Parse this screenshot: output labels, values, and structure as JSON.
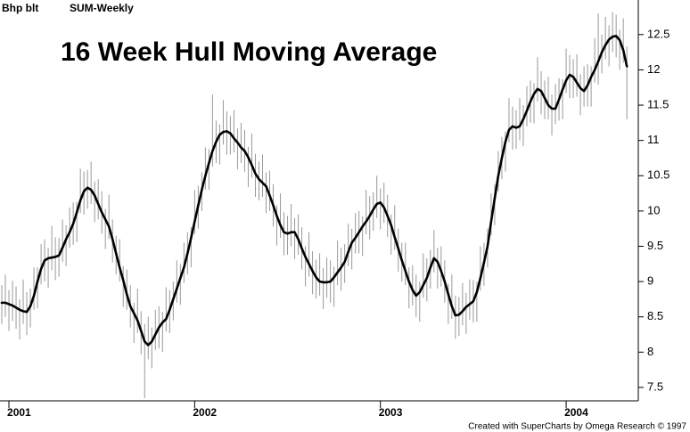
{
  "chart_data": {
    "type": "ohlc",
    "symbol": "Bhp blt",
    "interval": "SUM-Weekly",
    "title": "16 Week Hull Moving Average",
    "footer": "Created with SuperCharts by Omega Research © 1997",
    "bar_color": "#999999",
    "line_color": "#000000",
    "xlim": [
      -2.5,
      176.2
    ],
    "ylim": [
      7.31,
      12.99
    ],
    "xticks": [
      {
        "value": 0,
        "label": "2001"
      },
      {
        "value": 52,
        "label": "2002"
      },
      {
        "value": 104,
        "label": "2003"
      },
      {
        "value": 156,
        "label": "2004"
      }
    ],
    "yticks": [
      7.5,
      8,
      8.5,
      9,
      9.5,
      10,
      10.5,
      11,
      11.5,
      12,
      12.5
    ],
    "x": [
      -2,
      -1,
      0,
      1,
      2,
      3,
      4,
      5,
      6,
      7,
      8,
      9,
      10,
      11,
      12,
      13,
      14,
      15,
      16,
      17,
      18,
      19,
      20,
      21,
      22,
      23,
      24,
      25,
      26,
      27,
      28,
      29,
      30,
      31,
      32,
      33,
      34,
      35,
      36,
      37,
      38,
      39,
      40,
      41,
      42,
      43,
      44,
      45,
      46,
      47,
      48,
      49,
      50,
      51,
      52,
      53,
      54,
      55,
      56,
      57,
      58,
      59,
      60,
      61,
      62,
      63,
      64,
      65,
      66,
      67,
      68,
      69,
      70,
      71,
      72,
      73,
      74,
      75,
      76,
      77,
      78,
      79,
      80,
      81,
      82,
      83,
      84,
      85,
      86,
      87,
      88,
      89,
      90,
      91,
      92,
      93,
      94,
      95,
      96,
      97,
      98,
      99,
      100,
      101,
      102,
      103,
      104,
      105,
      106,
      107,
      108,
      109,
      110,
      111,
      112,
      113,
      114,
      115,
      116,
      117,
      118,
      119,
      120,
      121,
      122,
      123,
      124,
      125,
      126,
      127,
      128,
      129,
      130,
      131,
      132,
      133,
      134,
      135,
      136,
      137,
      138,
      139,
      140,
      141,
      142,
      143,
      144,
      145,
      146,
      147,
      148,
      149,
      150,
      151,
      152,
      153,
      154,
      155,
      156,
      157,
      158,
      159,
      160,
      161,
      162,
      163,
      164,
      165,
      166,
      167,
      168,
      169,
      170,
      171,
      172,
      173
    ],
    "high": [
      8.95,
      9.1,
      8.88,
      9.01,
      8.93,
      8.75,
      9.03,
      8.85,
      8.9,
      9.2,
      9.2,
      9.53,
      9.6,
      9.48,
      9.79,
      9.63,
      9.62,
      9.88,
      9.8,
      10.05,
      10.12,
      10.13,
      10.6,
      10.56,
      10.58,
      10.7,
      10.42,
      10.45,
      10.28,
      10.03,
      10.23,
      9.88,
      9.65,
      9.6,
      9.22,
      9.17,
      8.95,
      8.7,
      8.9,
      8.58,
      8.4,
      8.5,
      8.35,
      8.6,
      8.65,
      8.57,
      8.92,
      8.88,
      9.0,
      9.3,
      9.25,
      9.55,
      9.7,
      9.77,
      10.3,
      10.36,
      10.55,
      10.9,
      10.88,
      11.65,
      11.28,
      11.23,
      11.57,
      11.41,
      11.35,
      11.43,
      11.17,
      11.25,
      11.15,
      10.91,
      11.1,
      10.81,
      10.7,
      10.8,
      10.55,
      10.57,
      10.38,
      10.08,
      10.25,
      9.98,
      9.93,
      10.1,
      9.9,
      9.95,
      9.77,
      9.5,
      9.7,
      9.43,
      9.31,
      9.4,
      9.19,
      9.34,
      9.3,
      9.21,
      9.58,
      9.48,
      9.53,
      9.82,
      9.75,
      9.97,
      10.0,
      9.93,
      10.3,
      10.21,
      10.27,
      10.5,
      10.32,
      10.4,
      10.23,
      9.95,
      10.08,
      9.75,
      9.55,
      9.55,
      9.2,
      9.23,
      9.1,
      9.0,
      9.4,
      9.33,
      9.45,
      9.73,
      9.48,
      9.5,
      9.3,
      8.97,
      9.1,
      8.8,
      8.78,
      8.98,
      8.84,
      9.03,
      9.02,
      9.0,
      9.5,
      9.55,
      9.75,
      10.25,
      10.38,
      10.85,
      11.05,
      11.13,
      11.6,
      11.48,
      11.43,
      11.6,
      11.5,
      11.77,
      11.85,
      11.81,
      12.18,
      11.98,
      11.85,
      11.9,
      11.65,
      11.8,
      11.88,
      11.87,
      12.3,
      12.21,
      12.15,
      12.22,
      11.94,
      12.05,
      12.08,
      12.05,
      12.45,
      12.8,
      12.5,
      12.75,
      12.63,
      12.82,
      12.78,
      12.57,
      12.73,
      12.33
    ],
    "low": [
      8.4,
      8.5,
      8.3,
      8.44,
      8.33,
      8.18,
      8.4,
      8.24,
      8.35,
      8.6,
      8.62,
      8.96,
      9.0,
      8.91,
      9.16,
      9.02,
      9.07,
      9.28,
      9.22,
      9.48,
      9.52,
      9.56,
      9.97,
      9.95,
      10.03,
      10.1,
      9.84,
      9.88,
      9.68,
      9.46,
      9.6,
      9.27,
      9.1,
      9.0,
      8.64,
      8.6,
      8.35,
      8.13,
      8.27,
      7.97,
      7.35,
      7.9,
      7.77,
      8.03,
      8.05,
      8.0,
      8.29,
      8.27,
      8.45,
      8.7,
      8.67,
      8.98,
      9.1,
      9.2,
      9.67,
      9.75,
      10.0,
      10.3,
      10.3,
      10.63,
      10.68,
      10.66,
      10.94,
      10.8,
      10.8,
      10.83,
      10.59,
      10.68,
      10.55,
      10.34,
      10.47,
      10.2,
      10.15,
      10.2,
      9.97,
      10.0,
      9.78,
      9.51,
      9.62,
      9.37,
      9.38,
      9.5,
      9.32,
      9.38,
      9.17,
      8.93,
      9.07,
      8.82,
      8.76,
      8.8,
      8.61,
      8.77,
      8.7,
      8.64,
      8.95,
      8.87,
      8.98,
      9.22,
      9.17,
      9.4,
      9.4,
      9.36,
      9.67,
      9.6,
      9.72,
      9.9,
      9.74,
      9.83,
      9.63,
      9.38,
      9.45,
      9.14,
      9.0,
      8.95,
      8.62,
      8.66,
      8.5,
      8.43,
      8.77,
      8.72,
      8.9,
      9.13,
      8.9,
      8.93,
      8.7,
      8.4,
      8.47,
      8.19,
      8.23,
      8.38,
      8.26,
      8.46,
      8.42,
      8.43,
      8.87,
      8.94,
      9.2,
      9.65,
      9.8,
      10.28,
      10.45,
      10.56,
      10.97,
      10.87,
      10.88,
      11.0,
      10.92,
      11.2,
      11.25,
      11.24,
      11.55,
      11.37,
      11.3,
      11.3,
      11.07,
      11.23,
      11.28,
      11.3,
      11.67,
      11.6,
      11.6,
      11.62,
      11.36,
      11.48,
      11.48,
      11.48,
      11.82,
      11.79,
      11.95,
      12.15,
      12.05,
      12.25,
      12.18,
      12.0,
      12.1,
      11.3
    ],
    "line": [
      8.7,
      8.7,
      8.68,
      8.66,
      8.63,
      8.6,
      8.58,
      8.57,
      8.65,
      8.8,
      9.0,
      9.18,
      9.3,
      9.33,
      9.34,
      9.35,
      9.37,
      9.48,
      9.6,
      9.7,
      9.82,
      9.98,
      10.15,
      10.28,
      10.33,
      10.3,
      10.22,
      10.1,
      9.98,
      9.88,
      9.78,
      9.6,
      9.4,
      9.2,
      9.02,
      8.82,
      8.65,
      8.55,
      8.45,
      8.3,
      8.15,
      8.1,
      8.15,
      8.25,
      8.35,
      8.42,
      8.47,
      8.6,
      8.75,
      8.9,
      9.05,
      9.2,
      9.4,
      9.62,
      9.85,
      10.08,
      10.3,
      10.5,
      10.68,
      10.85,
      10.98,
      11.08,
      11.12,
      11.13,
      11.1,
      11.03,
      10.97,
      10.9,
      10.85,
      10.76,
      10.65,
      10.53,
      10.45,
      10.4,
      10.35,
      10.22,
      10.08,
      9.93,
      9.8,
      9.7,
      9.68,
      9.7,
      9.7,
      9.6,
      9.47,
      9.35,
      9.25,
      9.15,
      9.06,
      9.0,
      8.99,
      8.99,
      9.0,
      9.06,
      9.13,
      9.2,
      9.28,
      9.42,
      9.55,
      9.62,
      9.7,
      9.78,
      9.85,
      9.93,
      10.02,
      10.1,
      10.12,
      10.05,
      9.93,
      9.8,
      9.63,
      9.47,
      9.3,
      9.15,
      9.0,
      8.88,
      8.8,
      8.85,
      8.95,
      9.05,
      9.2,
      9.33,
      9.28,
      9.15,
      9.0,
      8.82,
      8.65,
      8.52,
      8.53,
      8.58,
      8.64,
      8.68,
      8.72,
      8.85,
      9.05,
      9.27,
      9.5,
      9.85,
      10.18,
      10.5,
      10.75,
      10.98,
      11.15,
      11.2,
      11.18,
      11.2,
      11.3,
      11.42,
      11.55,
      11.66,
      11.73,
      11.7,
      11.6,
      11.5,
      11.45,
      11.45,
      11.58,
      11.72,
      11.85,
      11.93,
      11.9,
      11.82,
      11.74,
      11.7,
      11.78,
      11.9,
      12.0,
      12.12,
      12.25,
      12.35,
      12.43,
      12.47,
      12.48,
      12.42,
      12.28,
      12.05
    ]
  }
}
